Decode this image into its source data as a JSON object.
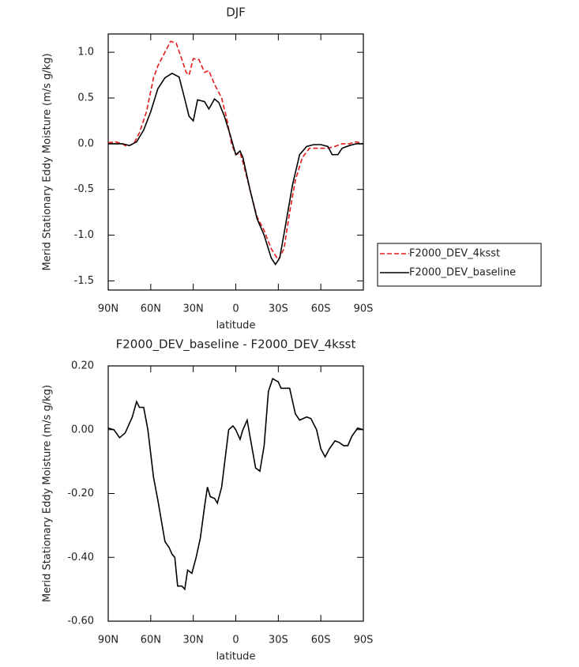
{
  "chart_data": [
    {
      "type": "line",
      "title": "DJF",
      "ylabel": "Merid Stationary Eddy Moisture (m/s g/kg)",
      "xlabel": "latitude",
      "xlim": [
        90,
        -90
      ],
      "xticks": [
        {
          "value": 90,
          "label": "90N"
        },
        {
          "value": 60,
          "label": "60N"
        },
        {
          "value": 30,
          "label": "30N"
        },
        0,
        {
          "value": -30,
          "label": "30S"
        },
        {
          "value": -60,
          "label": "60S"
        },
        {
          "value": -90,
          "label": "90S"
        }
      ],
      "ylim": [
        -1.6,
        1.2
      ],
      "yticks": [
        {
          "value": -1.5,
          "label": "-1.5"
        },
        {
          "value": -1.0,
          "label": "-1.0"
        },
        {
          "value": -0.5,
          "label": "-0.5"
        },
        {
          "value": 0,
          "label": "0.0"
        },
        0.5,
        {
          "value": 1.0,
          "label": "1.0"
        }
      ],
      "legend": "right",
      "series": [
        {
          "name": "F2000_DEV_4ksst",
          "color": "#e41a1c",
          "dash": true,
          "x": [
            90,
            85,
            80,
            77,
            72,
            68,
            63,
            58,
            55,
            50,
            46,
            42,
            38,
            35,
            33,
            30,
            26,
            22,
            19,
            15,
            10,
            6,
            3,
            0,
            -3,
            -5,
            -10,
            -15,
            -20,
            -25,
            -30,
            -34,
            -38,
            -42,
            -47,
            -52,
            -60,
            -65,
            -70,
            -75,
            -80,
            -85,
            -90
          ],
          "values": [
            0.01,
            0.02,
            0.0,
            -0.03,
            0.0,
            0.12,
            0.35,
            0.72,
            0.85,
            1.0,
            1.12,
            1.1,
            0.92,
            0.78,
            0.75,
            0.93,
            0.92,
            0.78,
            0.8,
            0.65,
            0.5,
            0.25,
            0.0,
            -0.12,
            -0.1,
            -0.2,
            -0.5,
            -0.8,
            -0.95,
            -1.15,
            -1.27,
            -1.15,
            -0.75,
            -0.4,
            -0.15,
            -0.05,
            -0.05,
            -0.05,
            -0.03,
            0.0,
            0.0,
            0.02,
            0.0
          ]
        },
        {
          "name": "F2000_DEV_baseline",
          "color": "#000000",
          "dash": false,
          "x": [
            90,
            80,
            75,
            70,
            65,
            60,
            55,
            50,
            45,
            40,
            37,
            33,
            30,
            27,
            22,
            19,
            15,
            12,
            8,
            4,
            0,
            -3,
            -5,
            -10,
            -15,
            -20,
            -25,
            -28,
            -31,
            -35,
            -40,
            -45,
            -50,
            -55,
            -60,
            -65,
            -68,
            -72,
            -75,
            -80,
            -85,
            -90
          ],
          "values": [
            0.0,
            0.0,
            -0.02,
            0.02,
            0.15,
            0.35,
            0.6,
            0.72,
            0.77,
            0.73,
            0.55,
            0.3,
            0.25,
            0.48,
            0.46,
            0.38,
            0.49,
            0.45,
            0.3,
            0.1,
            -0.12,
            -0.08,
            -0.15,
            -0.5,
            -0.82,
            -1.0,
            -1.25,
            -1.32,
            -1.25,
            -0.9,
            -0.45,
            -0.12,
            -0.03,
            -0.01,
            -0.01,
            -0.03,
            -0.12,
            -0.12,
            -0.05,
            -0.02,
            0.0,
            0.0
          ]
        }
      ]
    },
    {
      "type": "line",
      "title": "F2000_DEV_baseline - F2000_DEV_4ksst",
      "ylabel": "Merid Stationary Eddy Moisture (m/s g/kg)",
      "xlabel": "latitude",
      "xlim": [
        90,
        -90
      ],
      "xticks": [
        {
          "value": 90,
          "label": "90N"
        },
        {
          "value": 60,
          "label": "60N"
        },
        {
          "value": 30,
          "label": "30N"
        },
        0,
        {
          "value": -30,
          "label": "30S"
        },
        {
          "value": -60,
          "label": "60S"
        },
        {
          "value": -90,
          "label": "90S"
        }
      ],
      "ylim": [
        -0.6,
        0.2
      ],
      "yticks": [
        {
          "value": -0.6,
          "label": "-0.60"
        },
        {
          "value": -0.4,
          "label": "-0.40"
        },
        {
          "value": -0.2,
          "label": "-0.20"
        },
        {
          "value": 0,
          "label": "0.00"
        },
        {
          "value": 0.2,
          "label": "0.20"
        }
      ],
      "series": [
        {
          "color": "#000000",
          "dash": false,
          "x": [
            90,
            86,
            82,
            78,
            73,
            70,
            68,
            65,
            62,
            58,
            55,
            50,
            47,
            45,
            43,
            41,
            38,
            36,
            34,
            31,
            28,
            25,
            22,
            20,
            18,
            15,
            13,
            10,
            5,
            2,
            0,
            -3,
            -5,
            -8,
            -10,
            -14,
            -17,
            -20,
            -23,
            -26,
            -30,
            -32,
            -38,
            -42,
            -45,
            -50,
            -53,
            -57,
            -60,
            -63,
            -66,
            -70,
            -73,
            -76,
            -79,
            -82,
            -86,
            -90
          ],
          "values": [
            0.005,
            0.0,
            -0.025,
            -0.01,
            0.04,
            0.088,
            0.07,
            0.07,
            0.0,
            -0.15,
            -0.22,
            -0.35,
            -0.37,
            -0.39,
            -0.4,
            -0.49,
            -0.49,
            -0.5,
            -0.44,
            -0.45,
            -0.4,
            -0.34,
            -0.24,
            -0.18,
            -0.21,
            -0.215,
            -0.23,
            -0.18,
            0.0,
            0.012,
            0.0,
            -0.03,
            0.0,
            0.03,
            -0.02,
            -0.12,
            -0.13,
            -0.05,
            0.12,
            0.16,
            0.15,
            0.13,
            0.13,
            0.05,
            0.03,
            0.04,
            0.035,
            0.0,
            -0.06,
            -0.085,
            -0.06,
            -0.035,
            -0.04,
            -0.05,
            -0.05,
            -0.02,
            0.005,
            0.0
          ]
        }
      ]
    }
  ]
}
